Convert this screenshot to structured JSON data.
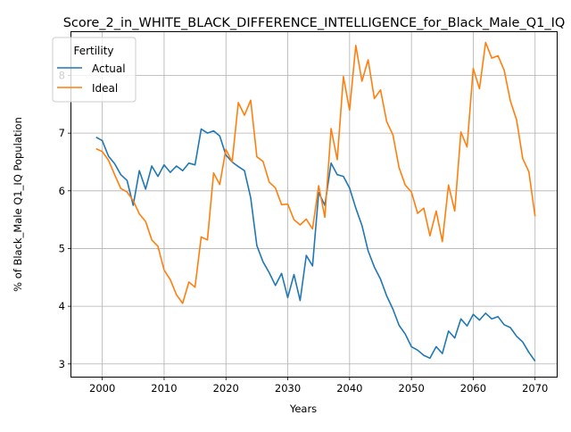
{
  "chart_data": {
    "type": "line",
    "title": "Score_2_in_WHITE_BLACK_DIFFERENCE_INTELLIGENCE_for_Black_Male_Q1_IQ",
    "xlabel": "Years",
    "ylabel": "% of Black_Male Q1_IQ Population",
    "xlim": [
      1995,
      2073.5
    ],
    "ylim": [
      2.78,
      8.75
    ],
    "xticks": [
      2000,
      2010,
      2020,
      2030,
      2040,
      2050,
      2060,
      2070
    ],
    "yticks": [
      3,
      4,
      5,
      6,
      7,
      8
    ],
    "grid": true,
    "legend": {
      "title": "Fertility",
      "position": "top-left"
    },
    "x": [
      1999,
      2000,
      2001,
      2002,
      2003,
      2004,
      2005,
      2006,
      2007,
      2008,
      2009,
      2010,
      2011,
      2012,
      2013,
      2014,
      2015,
      2016,
      2017,
      2018,
      2019,
      2020,
      2021,
      2022,
      2023,
      2024,
      2025,
      2026,
      2027,
      2028,
      2029,
      2030,
      2031,
      2032,
      2033,
      2034,
      2035,
      2036,
      2037,
      2038,
      2039,
      2040,
      2041,
      2042,
      2043,
      2044,
      2045,
      2046,
      2047,
      2048,
      2049,
      2050,
      2051,
      2052,
      2053,
      2054,
      2055,
      2056,
      2057,
      2058,
      2059,
      2060,
      2061,
      2062,
      2063,
      2064,
      2065,
      2066,
      2067,
      2068,
      2069,
      2070
    ],
    "series": [
      {
        "name": "Actual",
        "color": "#1f77b4",
        "values": [
          6.93,
          6.87,
          6.6,
          6.47,
          6.28,
          6.18,
          5.75,
          6.35,
          6.03,
          6.43,
          6.25,
          6.45,
          6.32,
          6.43,
          6.35,
          6.48,
          6.45,
          7.07,
          7.0,
          7.04,
          6.95,
          6.62,
          6.5,
          6.42,
          6.35,
          5.88,
          5.05,
          4.77,
          4.58,
          4.36,
          4.57,
          4.15,
          4.55,
          4.1,
          4.88,
          4.7,
          5.97,
          5.75,
          6.48,
          6.28,
          6.25,
          6.05,
          5.7,
          5.4,
          4.96,
          4.68,
          4.47,
          4.18,
          3.95,
          3.67,
          3.52,
          3.3,
          3.24,
          3.15,
          3.1,
          3.3,
          3.18,
          3.57,
          3.45,
          3.78,
          3.66,
          3.86,
          3.76,
          3.88,
          3.78,
          3.82,
          3.68,
          3.63,
          3.48,
          3.38,
          3.2,
          3.05
        ]
      },
      {
        "name": "Ideal",
        "color": "#ff7f0e",
        "values": [
          6.73,
          6.68,
          6.53,
          6.28,
          6.04,
          5.98,
          5.83,
          5.6,
          5.47,
          5.15,
          5.04,
          4.63,
          4.46,
          4.2,
          4.05,
          4.42,
          4.33,
          5.2,
          5.15,
          6.31,
          6.11,
          6.72,
          6.5,
          7.53,
          7.31,
          7.57,
          6.59,
          6.51,
          6.15,
          6.05,
          5.76,
          5.77,
          5.5,
          5.41,
          5.51,
          5.34,
          6.09,
          5.54,
          7.08,
          6.54,
          7.98,
          7.4,
          8.52,
          7.9,
          8.27,
          7.6,
          7.75,
          7.2,
          6.97,
          6.4,
          6.1,
          5.98,
          5.61,
          5.7,
          5.22,
          5.65,
          5.12,
          6.1,
          5.65,
          7.02,
          6.76,
          8.12,
          7.77,
          8.57,
          8.3,
          8.34,
          8.09,
          7.56,
          7.23,
          6.56,
          6.33,
          5.56
        ]
      }
    ]
  }
}
